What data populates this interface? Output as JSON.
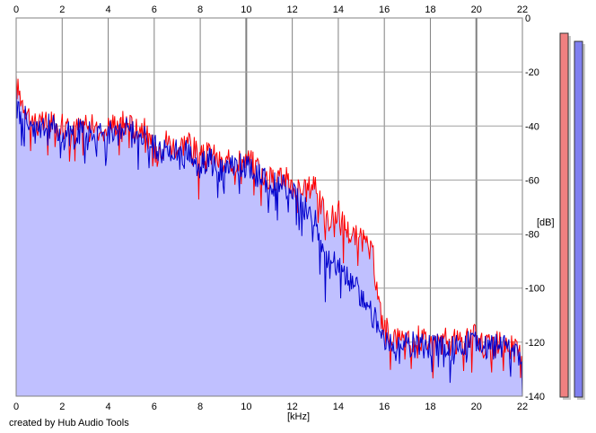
{
  "chart_data": {
    "type": "area",
    "title": "",
    "xlabel": "[kHz]",
    "ylabel": "[dB]",
    "xlim": [
      0,
      22
    ],
    "ylim": [
      -140,
      0
    ],
    "x_ticks": [
      0,
      2,
      4,
      6,
      8,
      10,
      12,
      14,
      16,
      18,
      20,
      22
    ],
    "y_ticks": [
      0,
      -20,
      -40,
      -60,
      -80,
      -100,
      -120,
      -140
    ],
    "y_tick_labels": [
      "0",
      "-20",
      "-40",
      "-60",
      "-80",
      "-100",
      "-120",
      "-140"
    ],
    "grid": true,
    "colors": {
      "series_a": "#ff0000",
      "series_b": "#0000cc",
      "fill": "#c0c0ff",
      "background": "#ffffff"
    },
    "series": [
      {
        "color": "#ff0000",
        "x": [
          0,
          0.5,
          1,
          1.5,
          2,
          2.5,
          3,
          3.5,
          4,
          4.5,
          5,
          5.5,
          6,
          6.5,
          7,
          7.5,
          8,
          8.5,
          9,
          9.5,
          10,
          10.5,
          11,
          11.5,
          12,
          12.5,
          13,
          13.2,
          13.5,
          14,
          14.5,
          15,
          15.5,
          15.8,
          16,
          16.5,
          17,
          17.5,
          18,
          18.5,
          19,
          19.5,
          20,
          20.5,
          21,
          21.5,
          22
        ],
        "y": [
          -25,
          -35,
          -40,
          -38,
          -40,
          -42,
          -38,
          -42,
          -40,
          -38,
          -40,
          -40,
          -50,
          -45,
          -48,
          -45,
          -52,
          -50,
          -55,
          -52,
          -52,
          -55,
          -60,
          -58,
          -62,
          -65,
          -60,
          -68,
          -75,
          -72,
          -80,
          -82,
          -88,
          -108,
          -115,
          -118,
          -120,
          -118,
          -120,
          -119,
          -120,
          -120,
          -118,
          -122,
          -120,
          -122,
          -125
        ]
      },
      {
        "color": "#0000cc",
        "x": [
          0,
          0.5,
          1,
          1.5,
          2,
          2.5,
          3,
          3.5,
          4,
          4.5,
          5,
          5.5,
          6,
          6.5,
          7,
          7.5,
          8,
          8.5,
          9,
          9.5,
          10,
          10.5,
          11,
          11.5,
          12,
          12.5,
          13,
          13.2,
          13.5,
          14,
          14.5,
          15,
          15.5,
          15.8,
          16,
          16.5,
          17,
          17.5,
          18,
          18.5,
          19,
          19.5,
          20,
          20.5,
          21,
          21.5,
          22
        ],
        "y": [
          -30,
          -38,
          -42,
          -40,
          -42,
          -44,
          -40,
          -44,
          -42,
          -40,
          -42,
          -42,
          -48,
          -50,
          -50,
          -50,
          -55,
          -52,
          -58,
          -55,
          -55,
          -58,
          -62,
          -62,
          -65,
          -70,
          -75,
          -85,
          -90,
          -92,
          -98,
          -102,
          -110,
          -115,
          -118,
          -122,
          -120,
          -122,
          -121,
          -120,
          -122,
          -121,
          -120,
          -123,
          -121,
          -123,
          -126
        ]
      }
    ],
    "level_meters": {
      "left_db": -3,
      "right_db": -6
    }
  },
  "footer": {
    "credit": "created by Hub Audio Tools"
  }
}
